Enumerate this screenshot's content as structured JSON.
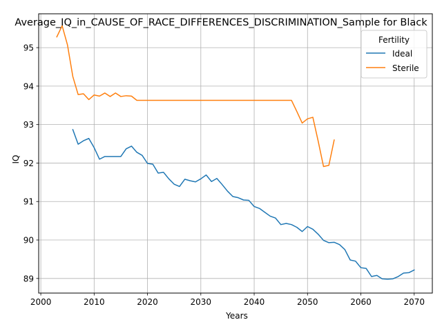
{
  "chart_data": {
    "type": "line",
    "title": "Average_IQ_in_CAUSE_OF_RACE_DIFFERENCES_DISCRIMINATION_Sample for Black",
    "xlabel": "Years",
    "ylabel": "IQ",
    "xlim": [
      1999.6,
      2073.4
    ],
    "ylim": [
      88.62,
      95.88
    ],
    "x_ticks": [
      2000,
      2010,
      2020,
      2030,
      2040,
      2050,
      2060,
      2070
    ],
    "y_ticks": [
      89,
      90,
      91,
      92,
      93,
      94,
      95
    ],
    "grid": true,
    "legend": {
      "title": "Fertility",
      "placement": "top-right"
    },
    "series": [
      {
        "name": "Ideal",
        "color": "#1f77b4",
        "x": [
          2006,
          2007,
          2008,
          2009,
          2010,
          2011,
          2012,
          2013,
          2014,
          2015,
          2016,
          2017,
          2018,
          2019,
          2020,
          2021,
          2022,
          2023,
          2024,
          2025,
          2026,
          2027,
          2028,
          2029,
          2030,
          2031,
          2032,
          2033,
          2034,
          2035,
          2036,
          2037,
          2038,
          2039,
          2040,
          2041,
          2042,
          2043,
          2044,
          2045,
          2046,
          2047,
          2048,
          2049,
          2050,
          2051,
          2052,
          2053,
          2054,
          2055,
          2056,
          2057,
          2058,
          2059,
          2060,
          2061,
          2062,
          2063,
          2064,
          2065,
          2066,
          2067,
          2068,
          2069,
          2070
        ],
        "values": [
          92.87,
          92.49,
          92.58,
          92.64,
          92.4,
          92.1,
          92.17,
          92.17,
          92.17,
          92.17,
          92.37,
          92.44,
          92.28,
          92.2,
          91.99,
          91.97,
          91.74,
          91.76,
          91.59,
          91.45,
          91.39,
          91.58,
          91.54,
          91.51,
          91.59,
          91.69,
          91.52,
          91.6,
          91.44,
          91.27,
          91.13,
          91.1,
          91.04,
          91.03,
          90.87,
          90.82,
          90.72,
          90.62,
          90.57,
          90.4,
          90.43,
          90.4,
          90.33,
          90.22,
          90.35,
          90.28,
          90.15,
          89.99,
          89.93,
          89.94,
          89.88,
          89.75,
          89.48,
          89.45,
          89.28,
          89.26,
          89.05,
          89.08,
          88.99,
          88.98,
          88.99,
          89.05,
          89.14,
          89.15,
          89.22
        ]
      },
      {
        "name": "Sterile",
        "color": "#ff7f0e",
        "x": [
          2003,
          2004,
          2005,
          2006,
          2007,
          2008,
          2009,
          2010,
          2011,
          2012,
          2013,
          2014,
          2015,
          2016,
          2017,
          2018,
          2019,
          2020,
          2021,
          2022,
          2023,
          2024,
          2025,
          2026,
          2027,
          2028,
          2029,
          2030,
          2031,
          2032,
          2033,
          2034,
          2035,
          2036,
          2037,
          2038,
          2039,
          2040,
          2041,
          2042,
          2043,
          2044,
          2045,
          2046,
          2047,
          2048,
          2049,
          2050,
          2051,
          2052,
          2053,
          2054,
          2055
        ],
        "values": [
          95.28,
          95.57,
          95.07,
          94.25,
          93.78,
          93.8,
          93.65,
          93.77,
          93.74,
          93.82,
          93.73,
          93.82,
          93.73,
          93.75,
          93.74,
          93.63,
          93.63,
          93.63,
          93.63,
          93.63,
          93.63,
          93.63,
          93.63,
          93.63,
          93.63,
          93.63,
          93.63,
          93.63,
          93.63,
          93.63,
          93.63,
          93.63,
          93.63,
          93.63,
          93.63,
          93.63,
          93.63,
          93.63,
          93.63,
          93.63,
          93.63,
          93.63,
          93.63,
          93.63,
          93.63,
          93.34,
          93.04,
          93.15,
          93.19,
          92.57,
          91.91,
          91.94,
          92.6
        ]
      }
    ]
  }
}
